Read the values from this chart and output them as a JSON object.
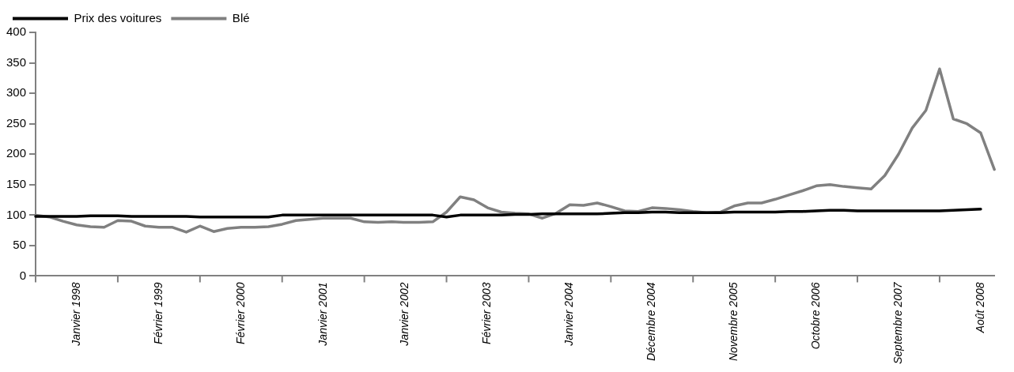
{
  "chart_data": {
    "type": "line",
    "categories": [
      null,
      null,
      null,
      "Janvier 1998",
      null,
      null,
      null,
      null,
      null,
      "Février 1999",
      null,
      null,
      null,
      null,
      null,
      "Février 2000",
      null,
      null,
      null,
      null,
      null,
      "Janvier 2001",
      null,
      null,
      null,
      null,
      null,
      "Janvier 2002",
      null,
      null,
      null,
      null,
      null,
      "Février 2003",
      null,
      null,
      null,
      null,
      null,
      "Janvier 2004",
      null,
      null,
      null,
      null,
      null,
      "Décembre 2004",
      null,
      null,
      null,
      null,
      null,
      "Novembre 2005",
      null,
      null,
      null,
      null,
      null,
      "Octobre 2006",
      null,
      null,
      null,
      null,
      null,
      "Septembre 2007",
      null,
      null,
      null,
      null,
      null,
      "Août 2008",
      null
    ],
    "series": [
      {
        "name": "Prix des voitures",
        "color": "#000000",
        "values": [
          98,
          98,
          98,
          98,
          99,
          99,
          99,
          98,
          98,
          98,
          98,
          98,
          97,
          97,
          97,
          97,
          97,
          97,
          100,
          100,
          100,
          100,
          100,
          100,
          100,
          100,
          100,
          100,
          100,
          100,
          97,
          100,
          100,
          100,
          100,
          101,
          101,
          102,
          102,
          102,
          102,
          102,
          103,
          104,
          104,
          105,
          105,
          104,
          104,
          104,
          104,
          105,
          105,
          105,
          105,
          106,
          106,
          107,
          108,
          108,
          107,
          107,
          107,
          107,
          107,
          107,
          107,
          108,
          109,
          110,
          null
        ]
      },
      {
        "name": "Blé",
        "color": "#808080",
        "values": [
          100,
          97,
          90,
          84,
          81,
          80,
          91,
          90,
          82,
          80,
          80,
          72,
          82,
          73,
          78,
          80,
          80,
          81,
          85,
          91,
          93,
          95,
          95,
          95,
          89,
          88,
          89,
          88,
          88,
          89,
          105,
          130,
          125,
          112,
          105,
          103,
          102,
          95,
          103,
          117,
          116,
          120,
          114,
          107,
          106,
          112,
          111,
          109,
          106,
          104,
          105,
          115,
          120,
          120,
          126,
          133,
          140,
          148,
          150,
          147,
          145,
          143,
          165,
          200,
          243,
          272,
          340,
          258,
          250,
          235,
          175
        ]
      }
    ],
    "ylim": [
      0,
      400
    ],
    "yticks": [
      0,
      50,
      100,
      150,
      200,
      250,
      300,
      350,
      400
    ],
    "grid": false,
    "legend": "top left",
    "marker": "none",
    "line_style": "solid"
  }
}
